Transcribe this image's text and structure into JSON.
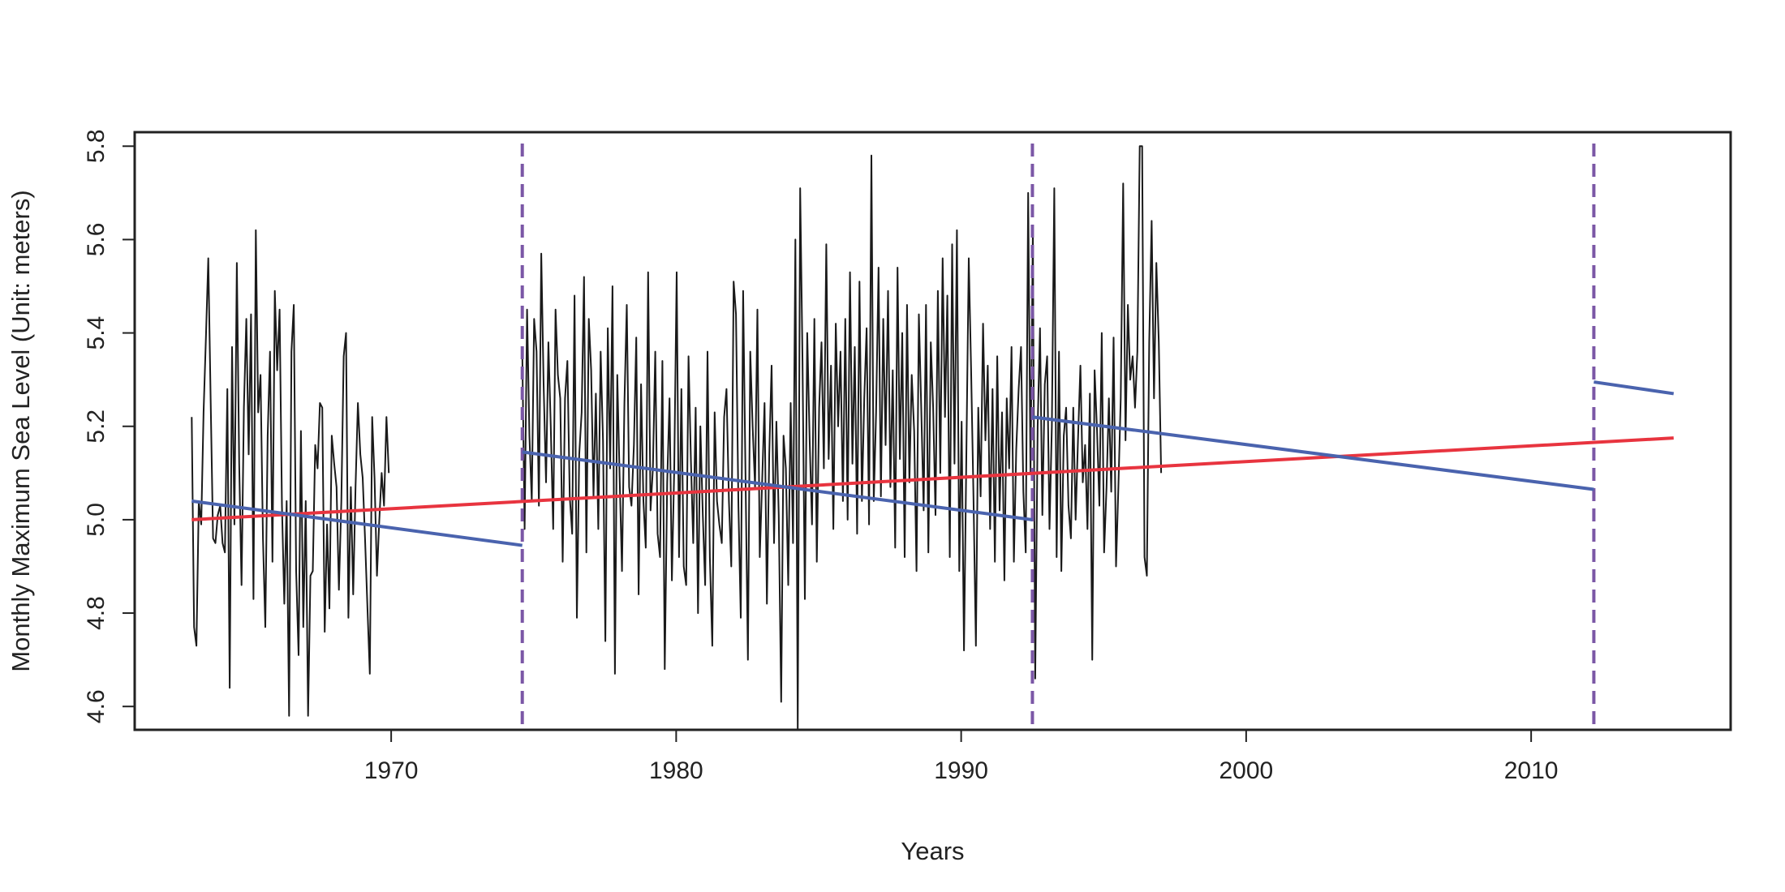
{
  "chart_data": {
    "type": "line",
    "title": "",
    "xlabel": "Years",
    "ylabel": "Monthly Maximum Sea Level (Unit: meters)",
    "xlim": [
      1961.0,
      2017.0
    ],
    "ylim": [
      4.55,
      5.83
    ],
    "x_ticks": [
      1970,
      1980,
      1990,
      2000,
      2010
    ],
    "y_ticks": [
      4.6,
      4.8,
      5.0,
      5.2,
      5.4,
      5.6,
      5.8
    ],
    "grid": false,
    "legend": "none",
    "series": [
      {
        "type": "monthly_series",
        "color": "#1a1a1a",
        "start_year": 1963,
        "values_by_year": [
          [
            5.22,
            4.77,
            4.73,
            5.04,
            4.99,
            5.23,
            5.39,
            5.56,
            5.25,
            4.96,
            4.95,
            5.01
          ],
          [
            5.03,
            4.95,
            4.93,
            5.28,
            4.64,
            5.37,
            4.99,
            5.55,
            5.12,
            4.86,
            5.24,
            5.43
          ],
          [
            5.14,
            5.44,
            4.83,
            5.62,
            5.23,
            5.31,
            4.96,
            4.77,
            5.18,
            5.36,
            4.91,
            5.49
          ],
          [
            5.32,
            5.45,
            5.03,
            4.82,
            5.04,
            4.58,
            5.36,
            5.46,
            4.89,
            4.71,
            5.19,
            4.77
          ],
          [
            5.04,
            4.58,
            4.88,
            4.89,
            5.16,
            5.11,
            5.25,
            5.24,
            4.76,
            4.99,
            4.81,
            5.18
          ],
          [
            5.12,
            5.07,
            4.85,
            5.04,
            5.35,
            5.4,
            4.79,
            5.07,
            4.84,
            5.07,
            5.25,
            5.14
          ],
          [
            5.09,
            4.96,
            4.81,
            4.67,
            5.22,
            5.09,
            4.88,
            5.0,
            5.1,
            5.03,
            5.22,
            5.1
          ]
        ],
        "gap_after": 1972.0,
        "resume_year": 1974.6,
        "values_by_year_2": [
          [
            5.36,
            4.98,
            5.45,
            5.18,
            5.04,
            5.43,
            5.36,
            5.03,
            5.57,
            5.29
          ],
          [
            5.08,
            5.38,
            5.2,
            4.98,
            5.45,
            5.31,
            5.26,
            4.91,
            5.26,
            5.34,
            5.05,
            4.97
          ],
          [
            5.48,
            4.79,
            5.14,
            5.23,
            5.52,
            4.93,
            5.43,
            5.32,
            5.05,
            5.27,
            4.98,
            5.36
          ],
          [
            5.17,
            4.74,
            5.41,
            5.11,
            5.5,
            4.67,
            5.31,
            5.09,
            4.89,
            5.25,
            5.46,
            5.07
          ],
          [
            5.03,
            5.16,
            5.39,
            4.84,
            5.29,
            5.04,
            4.94,
            5.53,
            5.02,
            5.11,
            5.36,
            4.97
          ],
          [
            4.92,
            5.34,
            4.68,
            5.08,
            5.26,
            4.87,
            5.11,
            5.53,
            4.92,
            5.28,
            4.9,
            4.86
          ],
          [
            5.35,
            5.13,
            4.95,
            5.24,
            4.8,
            5.2,
            5.01,
            4.86,
            5.36,
            4.92,
            4.73,
            5.23
          ],
          [
            5.04,
            4.99,
            4.95,
            5.22,
            5.28,
            5.04,
            4.9,
            5.51,
            5.44,
            5.03,
            4.79,
            5.49
          ],
          [
            5.1,
            4.7,
            5.36,
            5.2,
            5.07,
            5.45,
            4.92,
            5.08,
            5.25,
            4.82,
            5.14,
            5.33
          ],
          [
            4.95,
            5.21,
            5.01,
            4.61,
            5.18,
            5.11,
            4.86,
            5.25,
            4.95,
            5.6,
            4.55,
            5.71
          ]
        ],
        "values_by_year_3": [
          [
            5.34,
            4.83,
            5.4,
            5.17,
            4.99,
            5.43,
            4.91,
            5.24,
            5.38,
            5.11,
            5.59,
            5.13
          ],
          [
            5.33,
            4.98,
            5.42,
            5.2,
            5.36,
            5.04,
            5.43,
            5.0,
            5.53,
            5.12,
            5.37,
            4.97
          ],
          [
            5.51,
            5.04,
            5.26,
            5.41,
            4.99,
            5.78,
            5.04,
            5.23,
            5.54,
            5.05,
            5.43,
            5.16
          ],
          [
            5.49,
            5.07,
            5.32,
            4.94,
            5.54,
            5.13,
            5.4,
            4.92,
            5.46,
            5.08,
            5.31,
            5.19
          ],
          [
            4.89,
            5.44,
            5.24,
            5.02,
            5.46,
            4.93,
            5.38,
            5.24,
            5.01,
            5.49,
            5.1,
            5.56
          ],
          [
            5.22,
            5.48,
            4.92,
            5.59,
            5.12,
            5.62,
            4.89,
            5.21,
            4.72,
            5.15,
            5.56,
            5.32
          ],
          [
            5.05,
            4.73,
            5.24,
            5.05,
            5.42,
            5.17,
            5.33,
            4.98,
            5.28,
            4.91,
            5.35,
            5.02
          ],
          [
            5.23,
            4.87,
            5.26,
            5.11,
            5.37,
            4.91,
            5.15,
            5.28,
            5.37,
            5.06,
            4.93,
            5.7
          ],
          [
            5.1,
            5.62,
            4.66,
            5.2,
            5.41,
            5.01,
            5.29,
            5.35,
            4.98,
            5.2,
            5.71,
            4.92
          ],
          [
            5.36,
            4.89,
            5.18,
            5.24,
            5.03,
            4.96,
            5.24,
            5.0,
            5.17,
            5.33,
            5.08,
            5.16
          ],
          [
            4.98,
            5.27,
            4.7,
            5.32,
            5.19,
            5.03,
            5.4,
            4.93,
            5.07,
            5.26,
            5.06,
            5.39
          ],
          [
            4.9,
            5.07
          ]
        ],
        "values_by_year_4": [
          [
            5.26,
            5.72,
            5.17,
            5.46,
            5.3,
            5.35
          ],
          [
            5.24,
            5.36,
            5.8,
            5.8,
            4.92,
            4.88,
            5.38,
            5.64,
            5.26,
            5.55,
            5.38,
            5.1
          ]
        ]
      },
      {
        "name": "",
        "type": "overall_trend",
        "color": "#e8343f",
        "points": [
          [
            1963.0,
            5.0
          ],
          [
            2015.0,
            5.175
          ]
        ]
      },
      {
        "name": "",
        "type": "segment_trends",
        "color": "#4a63ae",
        "segments": [
          [
            [
              1963.0,
              5.04
            ],
            [
              1974.6,
              4.945
            ]
          ],
          [
            [
              1974.6,
              5.145
            ],
            [
              1992.5,
              5.0
            ]
          ],
          [
            [
              1992.5,
              5.22
            ],
            [
              2012.2,
              5.065
            ]
          ],
          [
            [
              2012.2,
              5.295
            ],
            [
              2015.0,
              5.27
            ]
          ]
        ]
      }
    ],
    "breakpoints": [
      1974.6,
      1992.5,
      2012.2
    ],
    "breakpoint_color": "#7b57a6"
  }
}
